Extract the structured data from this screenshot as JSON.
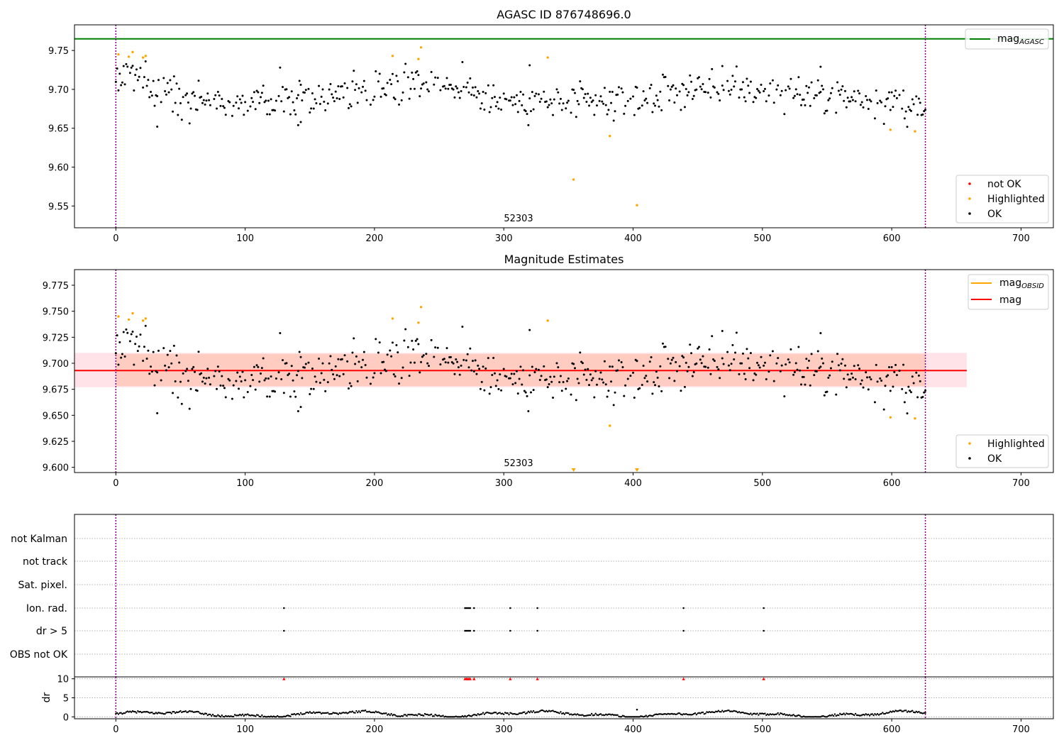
{
  "panel_titles": {
    "top": "AGASC ID 876748696.0",
    "middle": "Magnitude Estimates"
  },
  "obsid_label": "52303",
  "legends": {
    "top_line": "mag",
    "top_line_sub": "AGASC",
    "top_points": [
      "not OK",
      "Highlighted",
      "OK"
    ],
    "mid_lines": [
      "mag",
      "mag"
    ],
    "mid_lines_sub": "OBSID",
    "mid_points": [
      "Highlighted",
      "OK"
    ]
  },
  "flag_labels": [
    "not Kalman",
    "not track",
    "Sat. pixel.",
    "Ion. rad.",
    "dr > 5",
    "OBS not OK"
  ],
  "colors": {
    "ok": "#000000",
    "highlighted": "#ffa500",
    "not_ok": "#ff0000",
    "agasc_line": "#008000",
    "mag_line": "#ff0000",
    "mag_obsid_line": "#ffa500",
    "obsid_boundary": "#800080",
    "band_outer": "#ffc0cb",
    "band_inner": "#ffa07a"
  },
  "chart_data": [
    {
      "type": "scatter",
      "title": "AGASC ID 876748696.0",
      "xlim": [
        -32,
        725
      ],
      "ylim": [
        9.522,
        9.783
      ],
      "xticks": [
        0,
        100,
        200,
        300,
        400,
        500,
        600,
        700
      ],
      "yticks": [
        9.55,
        9.6,
        9.65,
        9.7,
        9.75
      ],
      "hlines": [
        {
          "name": "mag_AGASC",
          "y": 9.765,
          "color": "green"
        }
      ],
      "obsid_boundaries": [
        0,
        626
      ],
      "legend_placement": [
        "top-right",
        "bottom-right"
      ],
      "series": [
        {
          "name": "Highlighted",
          "x": [
            2,
            10,
            13,
            21,
            23,
            214,
            234,
            236,
            334,
            354,
            382,
            403,
            599,
            618
          ],
          "y": [
            9.745,
            9.742,
            9.748,
            9.741,
            9.743,
            9.743,
            9.739,
            9.754,
            9.741,
            9.584,
            9.64,
            9.551,
            9.648,
            9.646
          ]
        },
        {
          "name": "OK",
          "trend": {
            "x": [
              0,
              10,
              30,
              60,
              100,
              150,
              200,
              230,
              260,
              300,
              350,
              400,
              450,
              500,
              550,
              600,
              626
            ],
            "y": [
              9.712,
              9.728,
              9.698,
              9.69,
              9.683,
              9.69,
              9.703,
              9.712,
              9.705,
              9.685,
              9.681,
              9.686,
              9.703,
              9.697,
              9.691,
              9.686,
              9.668
            ]
          },
          "outliers": {
            "x": [
              32,
              127,
              141,
              143,
              320,
              545,
              469
            ],
            "y": [
              9.652,
              9.728,
              9.654,
              9.658,
              9.731,
              9.729,
              9.73
            ]
          }
        }
      ]
    },
    {
      "type": "scatter",
      "title": "Magnitude Estimates",
      "xlim": [
        -32,
        725
      ],
      "ylim": [
        9.595,
        9.79
      ],
      "xticks": [
        0,
        100,
        200,
        300,
        400,
        500,
        600,
        700
      ],
      "yticks": [
        9.6,
        9.625,
        9.65,
        9.675,
        9.7,
        9.725,
        9.75,
        9.775
      ],
      "hlines": [
        {
          "name": "mag",
          "y": 9.693,
          "color": "red"
        }
      ],
      "band_outer": [
        9.677,
        9.71
      ],
      "band_inner": [
        9.678,
        9.709
      ],
      "band_x": [
        -32,
        658
      ],
      "band_inner_x": [
        0,
        626
      ],
      "obsid_boundaries": [
        0,
        626
      ],
      "lower_limit_markers_x": [
        354,
        403
      ],
      "legend_placement": [
        "top-right",
        "bottom-right"
      ],
      "series": [
        {
          "name": "Highlighted",
          "x": [
            2,
            10,
            13,
            21,
            23,
            214,
            234,
            236,
            334,
            382,
            599,
            618
          ],
          "y": [
            9.745,
            9.742,
            9.748,
            9.741,
            9.743,
            9.743,
            9.739,
            9.754,
            9.741,
            9.64,
            9.648,
            9.647
          ]
        },
        {
          "name": "OK",
          "trend": {
            "x": [
              0,
              10,
              30,
              60,
              100,
              150,
              200,
              230,
              260,
              300,
              350,
              400,
              450,
              500,
              550,
              600,
              626
            ],
            "y": [
              9.712,
              9.728,
              9.698,
              9.69,
              9.683,
              9.69,
              9.703,
              9.712,
              9.705,
              9.685,
              9.681,
              9.686,
              9.703,
              9.697,
              9.691,
              9.686,
              9.668
            ]
          },
          "outliers": {
            "x": [
              32,
              127,
              141,
              143,
              320,
              545,
              469
            ],
            "y": [
              9.652,
              9.729,
              9.654,
              9.658,
              9.732,
              9.729,
              9.731
            ]
          }
        }
      ]
    },
    {
      "type": "scatter",
      "title": "",
      "xlim": [
        -32,
        725
      ],
      "categories": [
        "not Kalman",
        "not track",
        "Sat. pixel.",
        "Ion. rad.",
        "dr > 5",
        "OBS not OK"
      ],
      "flagged_x": {
        "Ion. rad.": [
          130,
          270,
          271,
          272,
          273,
          274,
          277,
          305,
          326,
          439,
          501
        ],
        "dr > 5": [
          130,
          270,
          271,
          272,
          273,
          274,
          277,
          305,
          326,
          439,
          501
        ]
      },
      "obsid_boundaries": [
        0,
        626
      ]
    },
    {
      "type": "scatter",
      "title": "",
      "ylabel": "dr",
      "xlim": [
        -32,
        725
      ],
      "ylim": [
        -0.5,
        10.5
      ],
      "xticks": [
        0,
        100,
        200,
        300,
        400,
        500,
        600,
        700
      ],
      "yticks": [
        0,
        5,
        10
      ],
      "clipped_above_x": [
        130,
        270,
        271,
        272,
        273,
        274,
        277,
        305,
        326,
        439,
        501
      ],
      "outliers": {
        "x": [
          403
        ],
        "y": [
          1.9
        ]
      },
      "obsid_boundaries": [
        0,
        626
      ]
    }
  ]
}
